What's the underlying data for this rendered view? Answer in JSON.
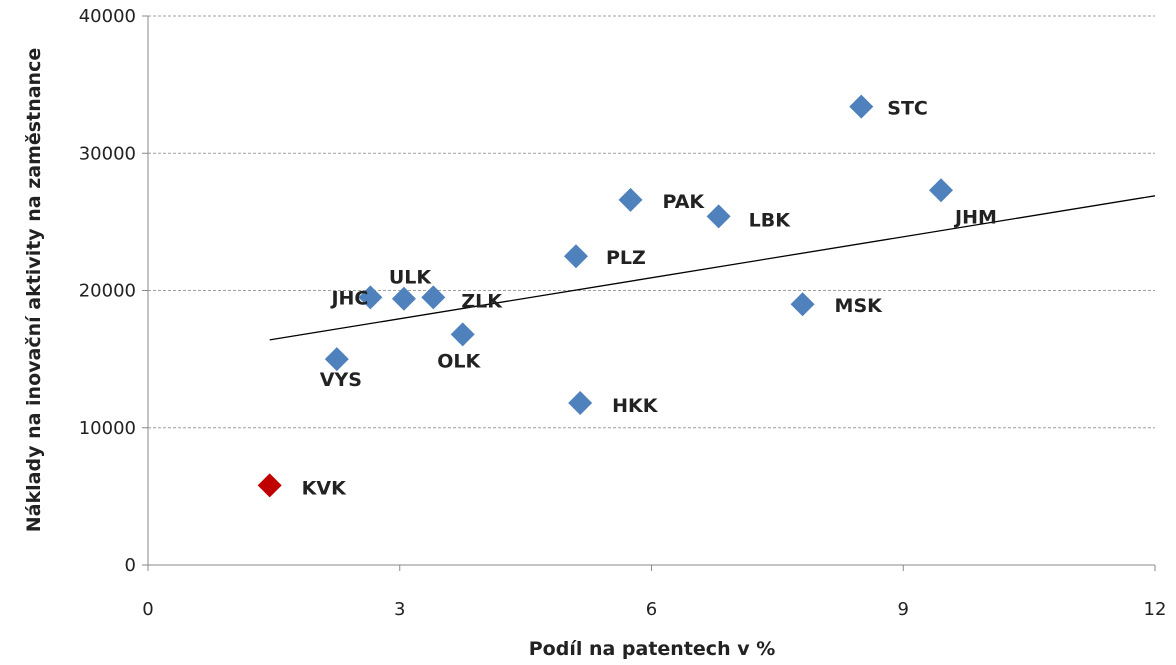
{
  "chart_data": {
    "type": "scatter",
    "title": "",
    "xlabel": "Podíl na patentech v %",
    "ylabel": "Náklady na inovační aktivity na zaměstnance",
    "xlim": [
      0,
      12
    ],
    "ylim": [
      0,
      40000
    ],
    "xticks": [
      0,
      3,
      6,
      9,
      12
    ],
    "xtick_labels": [
      "0",
      "3",
      "6",
      "9",
      "12"
    ],
    "yticks": [
      0,
      10000,
      20000,
      30000,
      40000
    ],
    "ytick_labels": [
      "0",
      "10000",
      "20000",
      "30000",
      "40000"
    ],
    "grid": "horizontal dashed",
    "legend": "none",
    "colors": {
      "default": "#4f81bd",
      "highlight": "#c00000",
      "trendline": "#000000",
      "gridline": "#a0a0a0",
      "axis": "#888888"
    },
    "points": [
      {
        "label": "STC",
        "x": 8.5,
        "y": 33400,
        "highlight": false
      },
      {
        "label": "JHM",
        "x": 9.45,
        "y": 27300,
        "highlight": false
      },
      {
        "label": "PAK",
        "x": 5.75,
        "y": 26600,
        "highlight": false
      },
      {
        "label": "LBK",
        "x": 6.8,
        "y": 25400,
        "highlight": false
      },
      {
        "label": "PLZ",
        "x": 5.1,
        "y": 22500,
        "highlight": false
      },
      {
        "label": "MSK",
        "x": 7.8,
        "y": 19000,
        "highlight": false
      },
      {
        "label": "JHC",
        "x": 2.65,
        "y": 19500,
        "highlight": false
      },
      {
        "label": "ULK",
        "x": 3.05,
        "y": 19400,
        "highlight": false
      },
      {
        "label": "ZLK",
        "x": 3.4,
        "y": 19500,
        "highlight": false
      },
      {
        "label": "OLK",
        "x": 3.75,
        "y": 16800,
        "highlight": false
      },
      {
        "label": "VYS",
        "x": 2.25,
        "y": 15000,
        "highlight": false
      },
      {
        "label": "HKK",
        "x": 5.15,
        "y": 11800,
        "highlight": false
      },
      {
        "label": "KVK",
        "x": 1.45,
        "y": 5800,
        "highlight": true
      }
    ],
    "trendline": {
      "type": "linear",
      "x_start": 1.45,
      "y_start": 16400,
      "x_end": 12,
      "y_end": 26900
    }
  }
}
